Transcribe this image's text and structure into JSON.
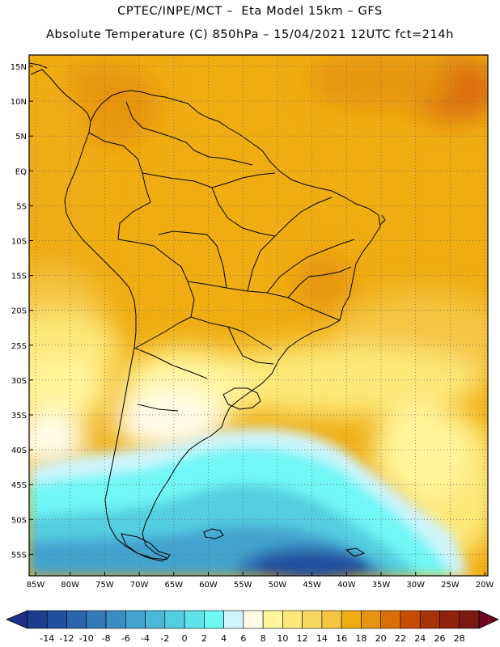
{
  "title_line1": "CPTEC/INPE/MCT –  Eta Model 15km – GFS",
  "title_line2": "Absolute Temperature (C) 850hPa – 15/04/2021 12UTC fct=214h",
  "map": {
    "lat_labels": [
      "15N",
      "10N",
      "5N",
      "EQ",
      "5S",
      "10S",
      "15S",
      "20S",
      "25S",
      "30S",
      "35S",
      "40S",
      "45S",
      "50S",
      "55S"
    ],
    "lon_labels": [
      "85W",
      "80W",
      "75W",
      "70W",
      "65W",
      "60W",
      "55W",
      "50W",
      "45W",
      "40W",
      "35W",
      "30W",
      "25W",
      "20W"
    ],
    "lat_range": [
      "15N",
      "58S"
    ],
    "lon_range": [
      "86W",
      "20W"
    ],
    "gridlines": "dotted"
  },
  "legend": {
    "ticks": [
      "-14",
      "-12",
      "-10",
      "-8",
      "-6",
      "-4",
      "-2",
      "0",
      "2",
      "4",
      "6",
      "8",
      "10",
      "12",
      "14",
      "16",
      "18",
      "20",
      "22",
      "24",
      "26",
      "28"
    ],
    "bins": [
      {
        "color": "#1b3f8e"
      },
      {
        "color": "#22509e"
      },
      {
        "color": "#2a64ac"
      },
      {
        "color": "#3279b8"
      },
      {
        "color": "#3a8ec4"
      },
      {
        "color": "#43a3cf"
      },
      {
        "color": "#4bb8d8"
      },
      {
        "color": "#55cde0"
      },
      {
        "color": "#5fe2ea"
      },
      {
        "color": "#6ff7f7"
      },
      {
        "color": "#cff4fb"
      },
      {
        "color": "#fffbe8"
      },
      {
        "color": "#fff59b"
      },
      {
        "color": "#fde879"
      },
      {
        "color": "#f9d861"
      },
      {
        "color": "#f5c542"
      },
      {
        "color": "#efad12"
      },
      {
        "color": "#e69510"
      },
      {
        "color": "#dc6e07"
      },
      {
        "color": "#c74c06"
      },
      {
        "color": "#a73407"
      },
      {
        "color": "#8e220b"
      },
      {
        "color": "#7b1a12"
      }
    ],
    "under_color": "#1e2f87",
    "over_color": "#6f0620"
  }
}
